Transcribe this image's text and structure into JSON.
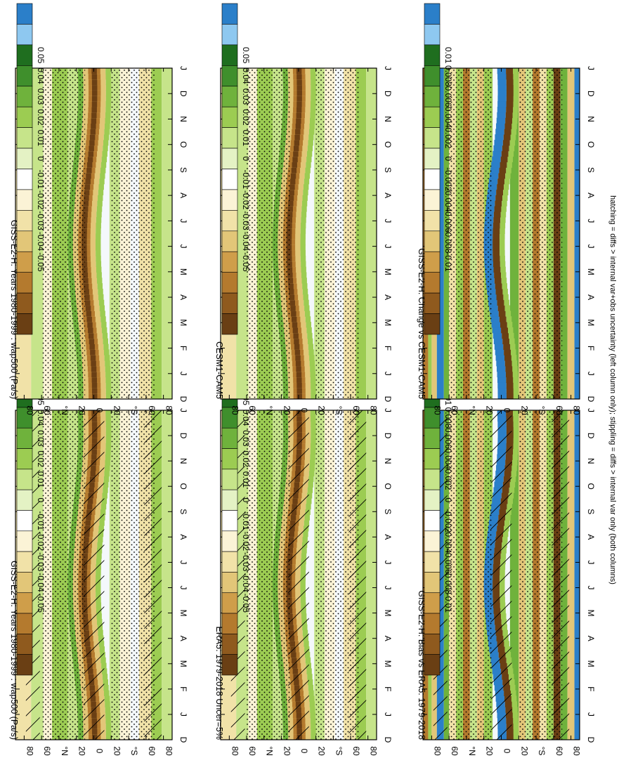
{
  "footer_note": "hatching = diffs > internal var+obs uncertainty (left column only); stippling = diffs > internal var only (both columns)",
  "colors": {
    "bar_levels": [
      "#2b7fc9",
      "#8ec8f0",
      "#1f6e1f",
      "#3f8f2c",
      "#6fb23c",
      "#9ccc52",
      "#c6e48a",
      "#e4f2c4",
      "#ffffff",
      "#fbf3d6",
      "#f1e2a8",
      "#e2c678",
      "#cf9e4a",
      "#b47a2e",
      "#8f5a1e",
      "#6a3f14"
    ],
    "field_pos": [
      "#e4f2c4",
      "#c6e48a",
      "#9ccc52",
      "#6fb23c",
      "#3f8f2c"
    ],
    "field_neg": [
      "#fbf3d6",
      "#f1e2a8",
      "#e2c678",
      "#b47a2e",
      "#6a3f14"
    ],
    "blue": "#2b7fc9"
  },
  "chart_data": [
    {
      "id": "p1",
      "type": "heatmap",
      "title": "GISS-E2-H: Years 1980-1999 : wap500 (Pa/s)",
      "x_ticks": [
        "D",
        "J",
        "F",
        "M",
        "A",
        "M",
        "J",
        "J",
        "A",
        "S",
        "O",
        "N",
        "D",
        "J"
      ],
      "y_ticks": [
        "80",
        "60",
        "°N",
        "20",
        "0",
        "20",
        "°S",
        "60",
        "80"
      ],
      "ylim": [
        -90,
        90
      ],
      "colorbar": [
        "0.05",
        "0.04",
        "0.03",
        "0.02",
        "0.01",
        "0",
        "-0.01",
        "-0.02",
        "-0.03",
        "-0.04",
        "-0.05"
      ],
      "hatching": true,
      "stippling": true
    },
    {
      "id": "p2",
      "type": "heatmap",
      "title": "GISS-E2-H: Years 1980-1999 : wap500 (Pa/s)",
      "x_ticks": [
        "D",
        "J",
        "F",
        "M",
        "A",
        "M",
        "J",
        "J",
        "A",
        "S",
        "O",
        "N",
        "D",
        "J"
      ],
      "y_ticks": [
        "80",
        "60",
        "°N",
        "20",
        "0",
        "20",
        "°S",
        "60",
        "80"
      ],
      "ylim": [
        -90,
        90
      ],
      "colorbar": [
        "0.05",
        "0.04",
        "0.03",
        "0.02",
        "0.01",
        "0",
        "-0.01",
        "-0.02",
        "-0.03",
        "-0.04",
        "-0.05"
      ],
      "hatching": false,
      "stippling": true
    },
    {
      "id": "p3",
      "type": "heatmap",
      "title": "ERA5: 1979-2018 Uncer=5%",
      "x_ticks": [
        "D",
        "J",
        "F",
        "M",
        "A",
        "M",
        "J",
        "J",
        "A",
        "S",
        "O",
        "N",
        "D",
        "J"
      ],
      "y_ticks": [
        "80",
        "60",
        "°N",
        "20",
        "0",
        "20",
        "°S",
        "60",
        "80"
      ],
      "ylim": [
        -90,
        90
      ],
      "colorbar": [
        "0.05",
        "0.04",
        "0.03",
        "0.02",
        "0.01",
        "0",
        "-0.01",
        "-0.02",
        "-0.03",
        "-0.04",
        "-0.05"
      ],
      "hatching": true,
      "stippling": true
    },
    {
      "id": "p4",
      "type": "heatmap",
      "title": "CESM1-CAM5",
      "x_ticks": [
        "D",
        "J",
        "F",
        "M",
        "A",
        "M",
        "J",
        "J",
        "A",
        "S",
        "O",
        "N",
        "D",
        "J"
      ],
      "y_ticks": [
        "80",
        "60",
        "°N",
        "20",
        "0",
        "20",
        "°S",
        "60",
        "80"
      ],
      "ylim": [
        -90,
        90
      ],
      "colorbar": [
        "0.05",
        "0.04",
        "0.03",
        "0.02",
        "0.01",
        "0",
        "-0.01",
        "-0.02",
        "-0.03",
        "-0.04",
        "-0.05"
      ],
      "hatching": false,
      "stippling": true
    },
    {
      "id": "p5",
      "type": "heatmap",
      "title": "GISS-E2-H: Bias vs ERA5: 1979-2018",
      "x_ticks": [
        "D",
        "J",
        "F",
        "M",
        "A",
        "M",
        "J",
        "J",
        "A",
        "S",
        "O",
        "N",
        "D",
        "J"
      ],
      "y_ticks": [
        "80",
        "60",
        "°N",
        "20",
        "0",
        "20",
        "°S",
        "60",
        "80"
      ],
      "ylim": [
        -90,
        90
      ],
      "colorbar": [
        "0.01",
        "0.008",
        "0.006",
        "0.004",
        "0.002",
        "0",
        "-0.002",
        "-0.004",
        "-0.006",
        "-0.008",
        "-0.01"
      ],
      "hatching": true,
      "stippling": true
    },
    {
      "id": "p6",
      "type": "heatmap",
      "title": "GISS-E2-H: Change vs CESM1-CAM5",
      "x_ticks": [
        "D",
        "J",
        "F",
        "M",
        "A",
        "M",
        "J",
        "J",
        "A",
        "S",
        "O",
        "N",
        "D",
        "J"
      ],
      "y_ticks": [
        "80",
        "60",
        "°N",
        "20",
        "0",
        "20",
        "°S",
        "60",
        "80"
      ],
      "ylim": [
        -90,
        90
      ],
      "colorbar": [
        "0.01",
        "0.008",
        "0.006",
        "0.004",
        "0.002",
        "0",
        "-0.002",
        "-0.004",
        "-0.006",
        "-0.008",
        "-0.01"
      ],
      "hatching": false,
      "stippling": true
    }
  ]
}
